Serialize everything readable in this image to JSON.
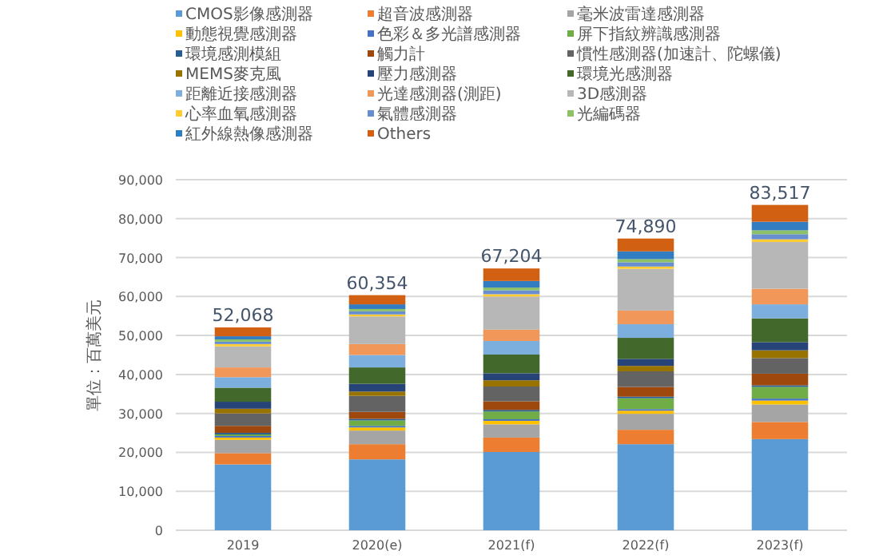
{
  "chart_data": {
    "type": "bar",
    "stacked": true,
    "ylabel": "單位：百萬美元",
    "categories": [
      "2019",
      "2020(e)",
      "2021(f)",
      "2022(f)",
      "2023(f)"
    ],
    "ylim": [
      0,
      90000
    ],
    "yticks": [
      0,
      {
        "value": 10000,
        "label": "10,000"
      },
      {
        "value": 20000,
        "label": "20,000"
      },
      {
        "value": 30000,
        "label": "30,000"
      },
      {
        "value": 40000,
        "label": "40,000"
      },
      {
        "value": 50000,
        "label": "50,000"
      },
      {
        "value": 60000,
        "label": "60,000"
      },
      {
        "value": 70000,
        "label": "70,000"
      },
      {
        "value": 80000,
        "label": "80,000"
      },
      {
        "value": 90000,
        "label": "90,000"
      }
    ],
    "grid": "y",
    "legend": "top",
    "totals": [
      "52,068",
      "60,354",
      "67,204",
      "74,890",
      "83,517"
    ],
    "series": [
      {
        "name": "CMOS影像感測器",
        "color": "#5b9bd5",
        "values": [
          16900,
          18200,
          20100,
          22100,
          23400
        ]
      },
      {
        "name": "超音波感測器",
        "color": "#ed7d31",
        "values": [
          2900,
          3900,
          3700,
          3700,
          4400
        ]
      },
      {
        "name": "毫米波雷達感測器",
        "color": "#a5a5a5",
        "values": [
          3400,
          3500,
          3400,
          4100,
          4500
        ]
      },
      {
        "name": "動態視覺感測器",
        "color": "#ffc000",
        "values": [
          600,
          800,
          900,
          800,
          1000
        ]
      },
      {
        "name": "色彩＆多光譜感測器",
        "color": "#4472c4",
        "values": [
          400,
          400,
          400,
          400,
          500
        ]
      },
      {
        "name": "屏下指紋辨識感測器",
        "color": "#70ad47",
        "values": [
          400,
          1400,
          2000,
          2800,
          3000
        ]
      },
      {
        "name": "環境感測模組",
        "color": "#255e91",
        "values": [
          400,
          400,
          400,
          400,
          400
        ]
      },
      {
        "name": "觸力計",
        "color": "#9e480e",
        "values": [
          1800,
          1800,
          2200,
          2500,
          3000
        ]
      },
      {
        "name": "慣性感測器(加速計、陀螺儀)",
        "color": "#636363",
        "values": [
          3200,
          4100,
          3800,
          4000,
          4000
        ]
      },
      {
        "name": "MEMS麥克風",
        "color": "#997300",
        "values": [
          1200,
          1100,
          1600,
          1400,
          2000
        ]
      },
      {
        "name": "壓力感測器",
        "color": "#264478",
        "values": [
          1800,
          2000,
          1800,
          1800,
          2100
        ]
      },
      {
        "name": "環境光感測器",
        "color": "#43682b",
        "values": [
          3600,
          4200,
          4800,
          5400,
          6100
        ]
      },
      {
        "name": "距離近接感測器",
        "color": "#7cafdd",
        "values": [
          2700,
          3200,
          3500,
          3500,
          3600
        ]
      },
      {
        "name": "光達感測器(測距)",
        "color": "#f1975a",
        "values": [
          2500,
          2800,
          2900,
          3500,
          4000
        ]
      },
      {
        "name": "3D感測器",
        "color": "#b7b7b7",
        "values": [
          5400,
          7100,
          8500,
          10700,
          12000
        ]
      },
      {
        "name": "心率血氧感測器",
        "color": "#ffcd33",
        "values": [
          600,
          500,
          600,
          600,
          700
        ]
      },
      {
        "name": "氣體感測器",
        "color": "#698ed0",
        "values": [
          600,
          800,
          1000,
          1100,
          1300
        ]
      },
      {
        "name": "光編碼器",
        "color": "#8cc168",
        "values": [
          600,
          600,
          700,
          800,
          1000
        ]
      },
      {
        "name": "紅外線熱像感測器",
        "color": "#327dc2",
        "values": [
          800,
          1200,
          1700,
          2000,
          2200
        ]
      },
      {
        "name": "Others",
        "color": "#d26012",
        "values": [
          2268,
          2354,
          3204,
          3290,
          4317
        ]
      }
    ]
  }
}
